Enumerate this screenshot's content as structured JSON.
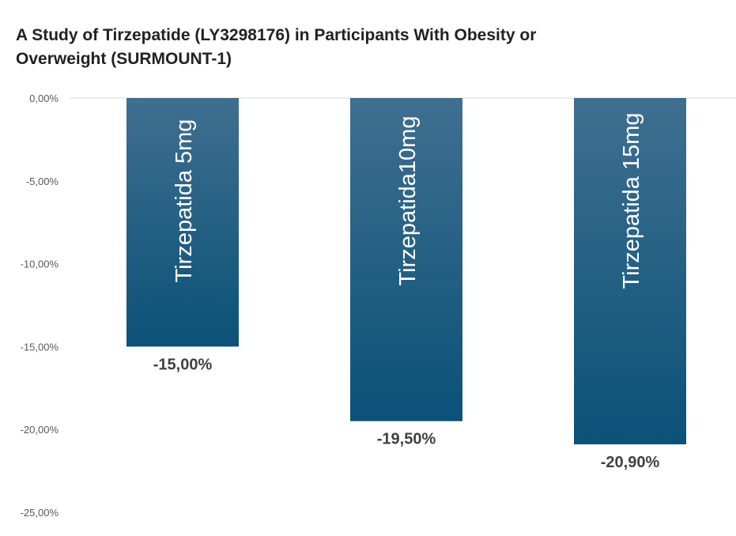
{
  "chart_data": {
    "type": "bar",
    "title": "A Study of Tirzepatide (LY3298176) in Participants With Obesity or Overweight (SURMOUNT-1)",
    "categories": [
      "Tirzepatida 5mg",
      "Tirzepatida10mg",
      "Tirzepatida 15mg"
    ],
    "values": [
      -15.0,
      -19.5,
      -20.9
    ],
    "value_labels": [
      "-15,00%",
      "-19,50%",
      "-20,90%"
    ],
    "y_ticks": [
      "0,00%",
      "-5,00%",
      "-10,00%",
      "-15,00%",
      "-20,00%",
      "-25,00%"
    ],
    "y_tick_values": [
      0,
      -5,
      -10,
      -15,
      -20,
      -25
    ],
    "ylim": [
      -25,
      0
    ],
    "xlabel": "",
    "ylabel": "",
    "grid": false,
    "legend": "none",
    "colors": {
      "bar_top": "#3f6f90",
      "bar_bottom": "#0b5178",
      "axis": "#d9d9d9",
      "tick_text": "#595959",
      "label_text": "#404040"
    }
  }
}
